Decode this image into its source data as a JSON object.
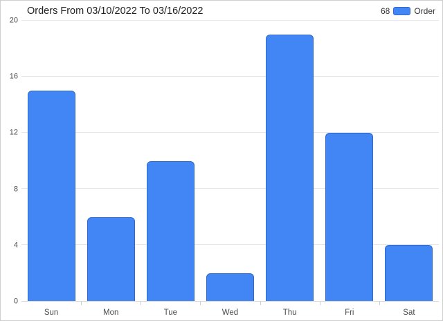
{
  "chart_data": {
    "type": "bar",
    "title": "Orders From 03/10/2022 To 03/16/2022",
    "categories": [
      "Sun",
      "Mon",
      "Tue",
      "Wed",
      "Thu",
      "Fri",
      "Sat"
    ],
    "values": [
      15,
      6,
      10,
      2,
      19,
      12,
      4
    ],
    "series_name": "Order",
    "total_orders": 68,
    "xlabel": "",
    "ylabel": "",
    "ylim": [
      0,
      20
    ],
    "yticks": [
      0,
      4,
      8,
      12,
      16,
      20
    ],
    "grid": true,
    "legend_position": "top-right",
    "bar_color": "#4285f4",
    "bar_border_color": "#2d68cd"
  },
  "legend": {
    "count": "68",
    "label": "Order"
  }
}
